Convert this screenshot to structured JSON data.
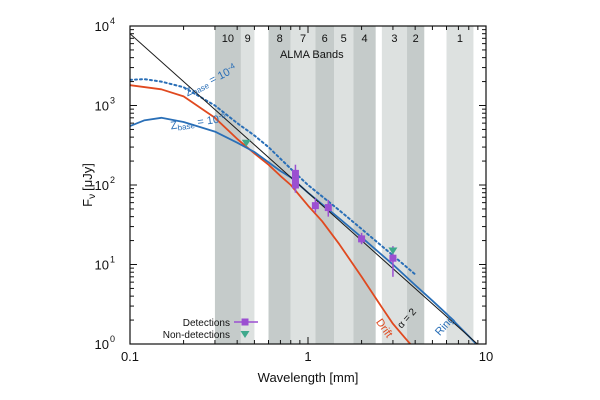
{
  "chart_data": {
    "type": "line",
    "xscale": "log",
    "yscale": "log",
    "xlim": [
      0.1,
      10
    ],
    "ylim": [
      1,
      10000
    ],
    "xlabel": "Wavelength [mm]",
    "ylabel_main": "F",
    "ylabel_sub": "ν",
    "ylabel_unit": "[μJy]",
    "x_ticks": [
      {
        "value": 0.1,
        "label": "0.1"
      },
      {
        "value": 1,
        "label": "1"
      },
      {
        "value": 10,
        "label": "10"
      }
    ],
    "y_ticks": [
      {
        "value": 1,
        "base": "10",
        "exp": "0"
      },
      {
        "value": 10,
        "base": "10",
        "exp": "1"
      },
      {
        "value": 100,
        "base": "10",
        "exp": "2"
      },
      {
        "value": 1000,
        "base": "10",
        "exp": "3"
      },
      {
        "value": 10000,
        "base": "10",
        "exp": "4"
      }
    ],
    "alma_title": "ALMA Bands",
    "alma_bands": [
      {
        "label": "10",
        "x0": 0.3,
        "x1": 0.42,
        "shade": "#c5cbca"
      },
      {
        "label": "9",
        "x0": 0.42,
        "x1": 0.5,
        "shade": "#dde1e0"
      },
      {
        "label": "8",
        "x0": 0.6,
        "x1": 0.8,
        "shade": "#c5cbca"
      },
      {
        "label": "7",
        "x0": 0.8,
        "x1": 1.1,
        "shade": "#dde1e0"
      },
      {
        "label": "6",
        "x0": 1.1,
        "x1": 1.4,
        "shade": "#c5cbca"
      },
      {
        "label": "5",
        "x0": 1.4,
        "x1": 1.8,
        "shade": "#dde1e0"
      },
      {
        "label": "4",
        "x0": 1.8,
        "x1": 2.4,
        "shade": "#c5cbca"
      },
      {
        "label": "3",
        "x0": 2.6,
        "x1": 3.6,
        "shade": "#dde1e0"
      },
      {
        "label": "2",
        "x0": 3.6,
        "x1": 4.5,
        "shade": "#c5cbca"
      },
      {
        "label": "1",
        "x0": 6.0,
        "x1": 8.5,
        "shade": "#dde1e0"
      }
    ],
    "series": [
      {
        "name": "Drift",
        "color": "#e0491f",
        "style": "solid",
        "x": [
          0.1,
          0.15,
          0.2,
          0.3,
          0.4,
          0.5,
          0.6,
          0.7,
          0.8,
          1.0,
          1.2,
          1.5,
          2.0,
          2.5,
          3.0,
          3.5,
          4.0
        ],
        "y": [
          1800,
          1600,
          1300,
          700,
          380,
          250,
          180,
          130,
          100,
          55,
          35,
          18,
          7,
          3.3,
          1.8,
          1.2,
          0.85
        ]
      },
      {
        "name": "Ring",
        "color": "#2a6fb7",
        "style": "solid",
        "x": [
          0.1,
          0.12,
          0.15,
          0.2,
          0.3,
          0.4,
          0.5,
          0.7,
          0.8,
          1.0,
          1.5,
          2.0,
          3.0,
          4.0,
          5.0,
          6.0,
          7.0,
          8.0,
          9.0
        ],
        "y": [
          550,
          650,
          700,
          620,
          470,
          340,
          260,
          150,
          125,
          80,
          38,
          22,
          10,
          5.5,
          3.5,
          2.4,
          1.7,
          1.25,
          0.95
        ]
      },
      {
        "name": "z_base = 10^-4",
        "color": "#2a6fb7",
        "style": "dotted",
        "x": [
          0.1,
          0.12,
          0.15,
          0.2,
          0.3,
          0.4,
          0.5,
          0.6,
          0.8,
          1.0,
          1.5,
          2.0,
          3.0,
          4.0
        ],
        "y": [
          2100,
          2150,
          2000,
          1700,
          1000,
          600,
          420,
          300,
          160,
          100,
          48,
          28,
          13,
          7.5
        ]
      },
      {
        "name": "α = 2",
        "color": "#1a1a1a",
        "style": "thin",
        "x": [
          0.1,
          10
        ],
        "y": [
          8000,
          0.8
        ]
      }
    ],
    "detections": [
      {
        "x": 0.85,
        "y": 140,
        "err": [
          100,
          180
        ]
      },
      {
        "x": 0.85,
        "y": 115,
        "err": [
          85,
          145
        ]
      },
      {
        "x": 0.85,
        "y": 100,
        "err": [
          80,
          125
        ]
      },
      {
        "x": 1.1,
        "y": 55,
        "err": [
          45,
          68
        ]
      },
      {
        "x": 1.3,
        "y": 52,
        "err": [
          40,
          65
        ]
      },
      {
        "x": 2.0,
        "y": 21,
        "err": [
          18,
          25
        ]
      },
      {
        "x": 3.0,
        "y": 12,
        "err": [
          7,
          17
        ]
      }
    ],
    "non_detections": [
      {
        "x": 0.45,
        "y": 340
      },
      {
        "x": 3.0,
        "y": 15
      }
    ],
    "marker_colors": {
      "detection": "#9b4fd1",
      "non_detection": "#3fa98c"
    },
    "annotations": {
      "zbase4_prefix": "Z",
      "zbase4_sub": "base",
      "zbase4_mid": " = 10",
      "zbase4_exp": "-4",
      "zbase6_prefix": "Z",
      "zbase6_sub": "base",
      "zbase6_mid": " = 10",
      "zbase6_exp": "-6",
      "drift": "Drift",
      "ring": "Ring",
      "alpha": "α = 2"
    },
    "legend": {
      "placement": "bottom-left",
      "entries": [
        {
          "label": "Detections",
          "marker": "square"
        },
        {
          "label": "Non-detections",
          "marker": "triangle"
        }
      ]
    }
  }
}
